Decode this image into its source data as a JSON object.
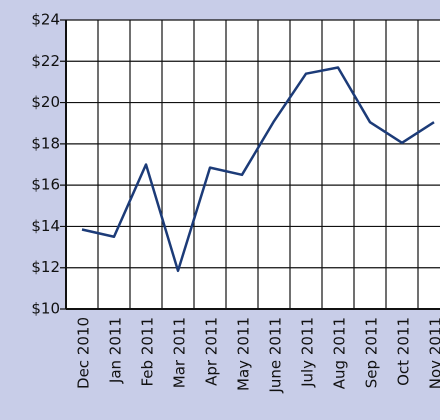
{
  "chart_data": {
    "type": "line",
    "categories": [
      "Dec 2010",
      "Jan 2011",
      "Feb 2011",
      "Mar 2011",
      "Apr 2011",
      "May 2011",
      "June 2011",
      "July 2011",
      "Aug 2011",
      "Sep 2011",
      "Oct 2011",
      "Nov 2011"
    ],
    "values": [
      13.85,
      13.5,
      17.0,
      11.85,
      16.85,
      16.5,
      19.1,
      21.4,
      21.7,
      19.05,
      18.05,
      19.05
    ],
    "color": "#1c3b78",
    "ylim": [
      10,
      24
    ],
    "yticks": [
      {
        "value": 10,
        "label": "$10"
      },
      {
        "value": 12,
        "label": "$12"
      },
      {
        "value": 14,
        "label": "$14"
      },
      {
        "value": 16,
        "label": "$16"
      },
      {
        "value": 18,
        "label": "$18"
      },
      {
        "value": 20,
        "label": "$20"
      },
      {
        "value": 22,
        "label": "$22"
      },
      {
        "value": 24,
        "label": "$24"
      }
    ],
    "grid": true
  }
}
